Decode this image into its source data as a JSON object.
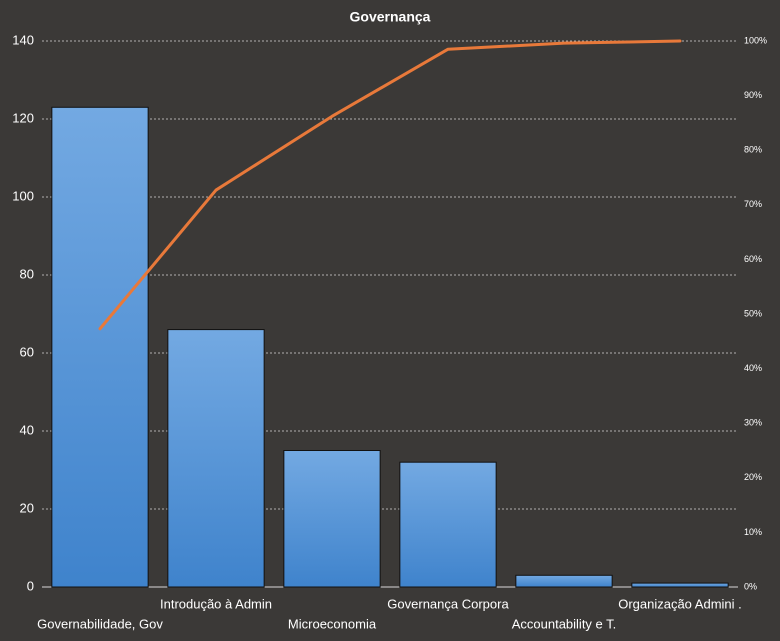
{
  "chart_data": {
    "type": "bar",
    "title": "Governança",
    "categories": [
      "Governabilidade, Gov",
      "Introdução  à Admin",
      "Microeconomia",
      "Governança  Corpora",
      "Accountability e T.",
      "Organização Admini ."
    ],
    "series": [
      {
        "type": "bar",
        "color": "#4f93db",
        "values": [
          123,
          66,
          35,
          32,
          3,
          1
        ]
      },
      {
        "type": "line",
        "axis": "y2",
        "color": "#e8793a",
        "values": [
          47.3,
          72.7,
          86.2,
          98.5,
          99.6,
          100
        ]
      }
    ],
    "ylim": [
      0,
      140
    ],
    "yticks": [
      0,
      20,
      40,
      60,
      80,
      100,
      120,
      140
    ],
    "y2lim": [
      0,
      100
    ],
    "y2ticks": [
      {
        "value": 0,
        "label": "0%"
      },
      {
        "value": 10,
        "label": "10%"
      },
      {
        "value": 20,
        "label": "20%"
      },
      {
        "value": 30,
        "label": "30%"
      },
      {
        "value": 40,
        "label": "40%"
      },
      {
        "value": 50,
        "label": "50%"
      },
      {
        "value": 60,
        "label": "60%"
      },
      {
        "value": 70,
        "label": "70%"
      },
      {
        "value": 80,
        "label": "80%"
      },
      {
        "value": 90,
        "label": "90%"
      },
      {
        "value": 100,
        "label": "100%"
      }
    ],
    "grid": true
  }
}
